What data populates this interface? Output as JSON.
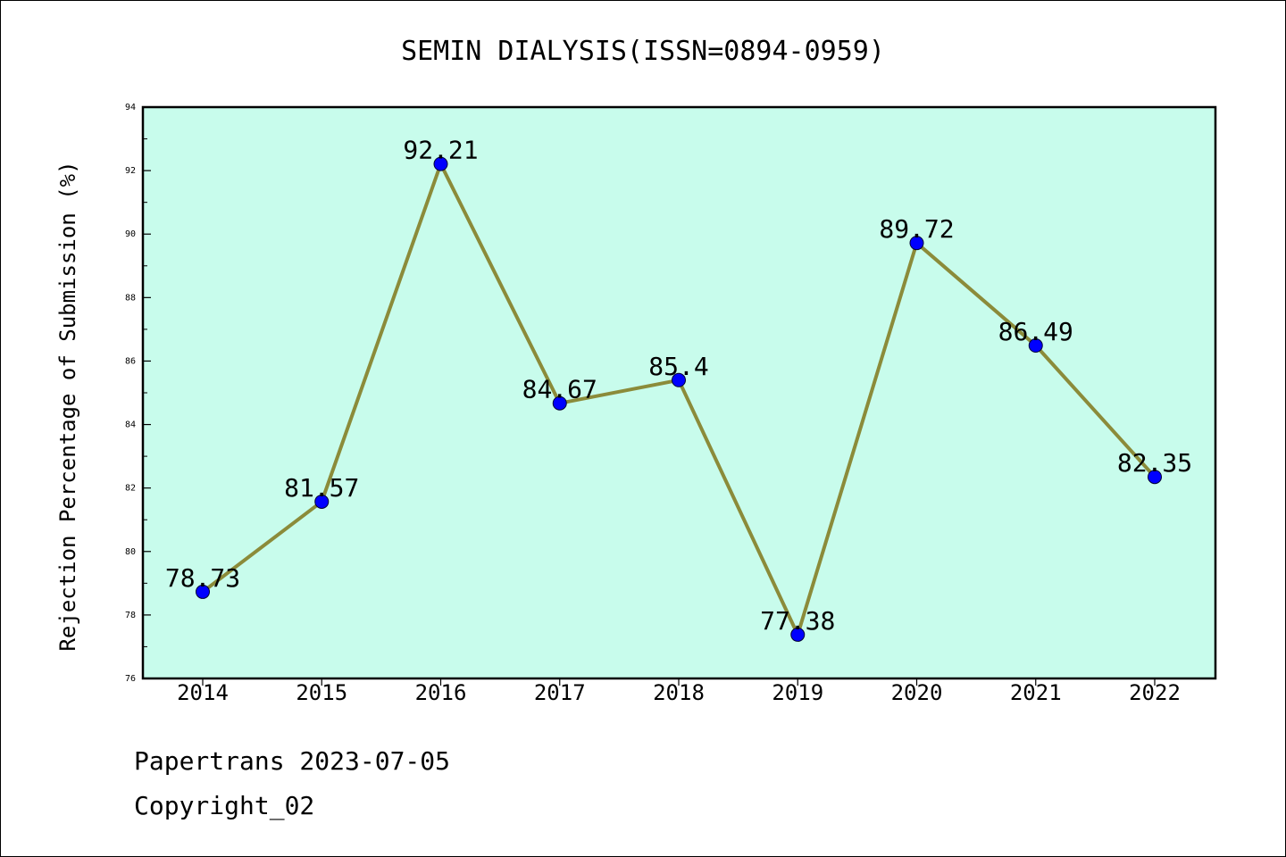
{
  "chart_data": {
    "type": "line",
    "title": "SEMIN DIALYSIS(ISSN=0894-0959)",
    "xlabel": "",
    "ylabel": "Rejection Percentage of Submission (%)",
    "categories": [
      "2014",
      "2015",
      "2016",
      "2017",
      "2018",
      "2019",
      "2020",
      "2021",
      "2022"
    ],
    "series": [
      {
        "values": [
          78.73,
          81.57,
          92.21,
          84.67,
          85.4,
          77.38,
          89.72,
          86.49,
          82.35
        ],
        "labels": [
          "78.73",
          "81.57",
          "92.21",
          "84.67",
          "85.4",
          "77.38",
          "89.72",
          "86.49",
          "82.35"
        ]
      }
    ],
    "ylim": [
      76,
      94
    ],
    "yticks": [
      76,
      78,
      80,
      82,
      84,
      86,
      88,
      90,
      92,
      94
    ],
    "ytick_labels": [
      "76",
      "78",
      "80",
      "82",
      "84",
      "86",
      "88",
      "90",
      "92",
      "94"
    ],
    "grid": false,
    "legend": "none",
    "colors": {
      "plot_background": "#c8fcec",
      "line": "#8b8b3a",
      "marker": "#0000ff"
    }
  },
  "footer": {
    "line1": "Papertrans 2023-07-05",
    "line2": "Copyright_02"
  }
}
